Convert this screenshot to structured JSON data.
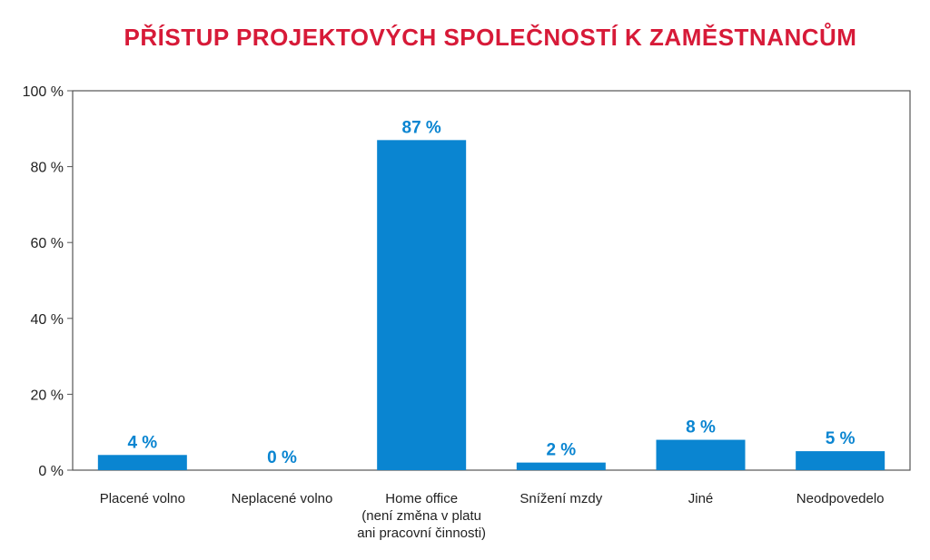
{
  "chart_data": {
    "type": "bar",
    "title": "PŘÍSTUP PROJEKTOVÝCH SPOLEČNOSTÍ K ZAMĚSTNANCŮM",
    "categories": [
      [
        "Placené volno"
      ],
      [
        "Neplacené volno"
      ],
      [
        "Home office",
        "(není změna v platu",
        "ani pracovní činnosti)"
      ],
      [
        "Snížení mzdy"
      ],
      [
        "Jiné"
      ],
      [
        "Neodpovedelo"
      ]
    ],
    "values": [
      4,
      0,
      87,
      2,
      8,
      5
    ],
    "value_labels": [
      "4 %",
      "0 %",
      "87 %",
      "2 %",
      "8 %",
      "5 %"
    ],
    "ylim": [
      0,
      100
    ],
    "yticks": [
      0,
      20,
      40,
      60,
      80,
      100
    ],
    "ytick_labels": [
      "0 %",
      "20 %",
      "40 %",
      "60 %",
      "80 %",
      "100 %"
    ],
    "xlabel": "",
    "ylabel": "",
    "grid": false,
    "legend": "none",
    "colors": {
      "bar": "#0a85d1",
      "data_label": "#0a85d1",
      "title": "#d71a38",
      "axis": "#555555"
    }
  }
}
